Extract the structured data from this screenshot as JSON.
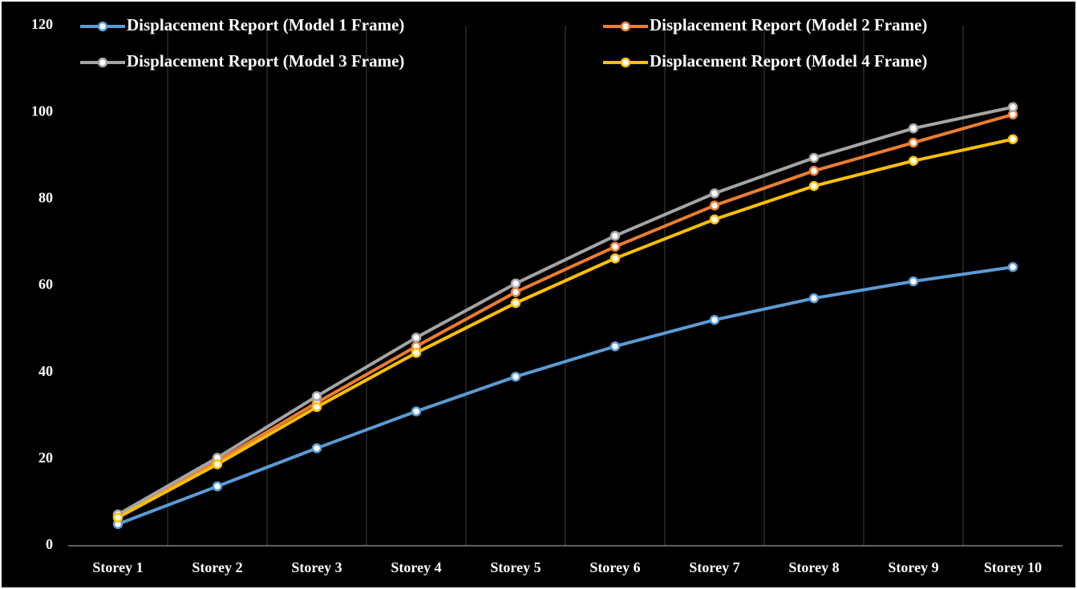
{
  "chart_data": {
    "type": "line",
    "categories": [
      "Storey 1",
      "Storey 2",
      "Storey 3",
      "Storey 4",
      "Storey 5",
      "Storey 6",
      "Storey 7",
      "Storey 8",
      "Storey 9",
      "Storey 10"
    ],
    "series": [
      {
        "name": "Displacement Report (Model 1 Frame)",
        "color": "#5b9bd5",
        "values": [
          5.0,
          13.7,
          22.5,
          31.0,
          39.0,
          46.0,
          52.1,
          57.1,
          61.0,
          64.3
        ]
      },
      {
        "name": "Displacement Report (Model 2 Frame)",
        "color": "#ed7d31",
        "values": [
          6.8,
          19.5,
          33.0,
          46.0,
          58.5,
          69.0,
          78.5,
          86.5,
          93.0,
          99.5
        ]
      },
      {
        "name": "Displacement Report (Model 3 Frame)",
        "color": "#a5a5a5",
        "values": [
          7.2,
          20.3,
          34.5,
          48.0,
          60.5,
          71.5,
          81.3,
          89.5,
          96.3,
          101.2
        ]
      },
      {
        "name": "Displacement Report (Model 4 Frame)",
        "color": "#ffc000",
        "values": [
          6.5,
          18.8,
          32.0,
          44.5,
          56.0,
          66.3,
          75.3,
          83.0,
          88.8,
          93.8
        ]
      }
    ],
    "ylim": [
      0,
      120
    ],
    "yticks": [
      0,
      20,
      40,
      60,
      80,
      100,
      120
    ],
    "grid": false,
    "vertical_grid": true,
    "legend": "top"
  }
}
